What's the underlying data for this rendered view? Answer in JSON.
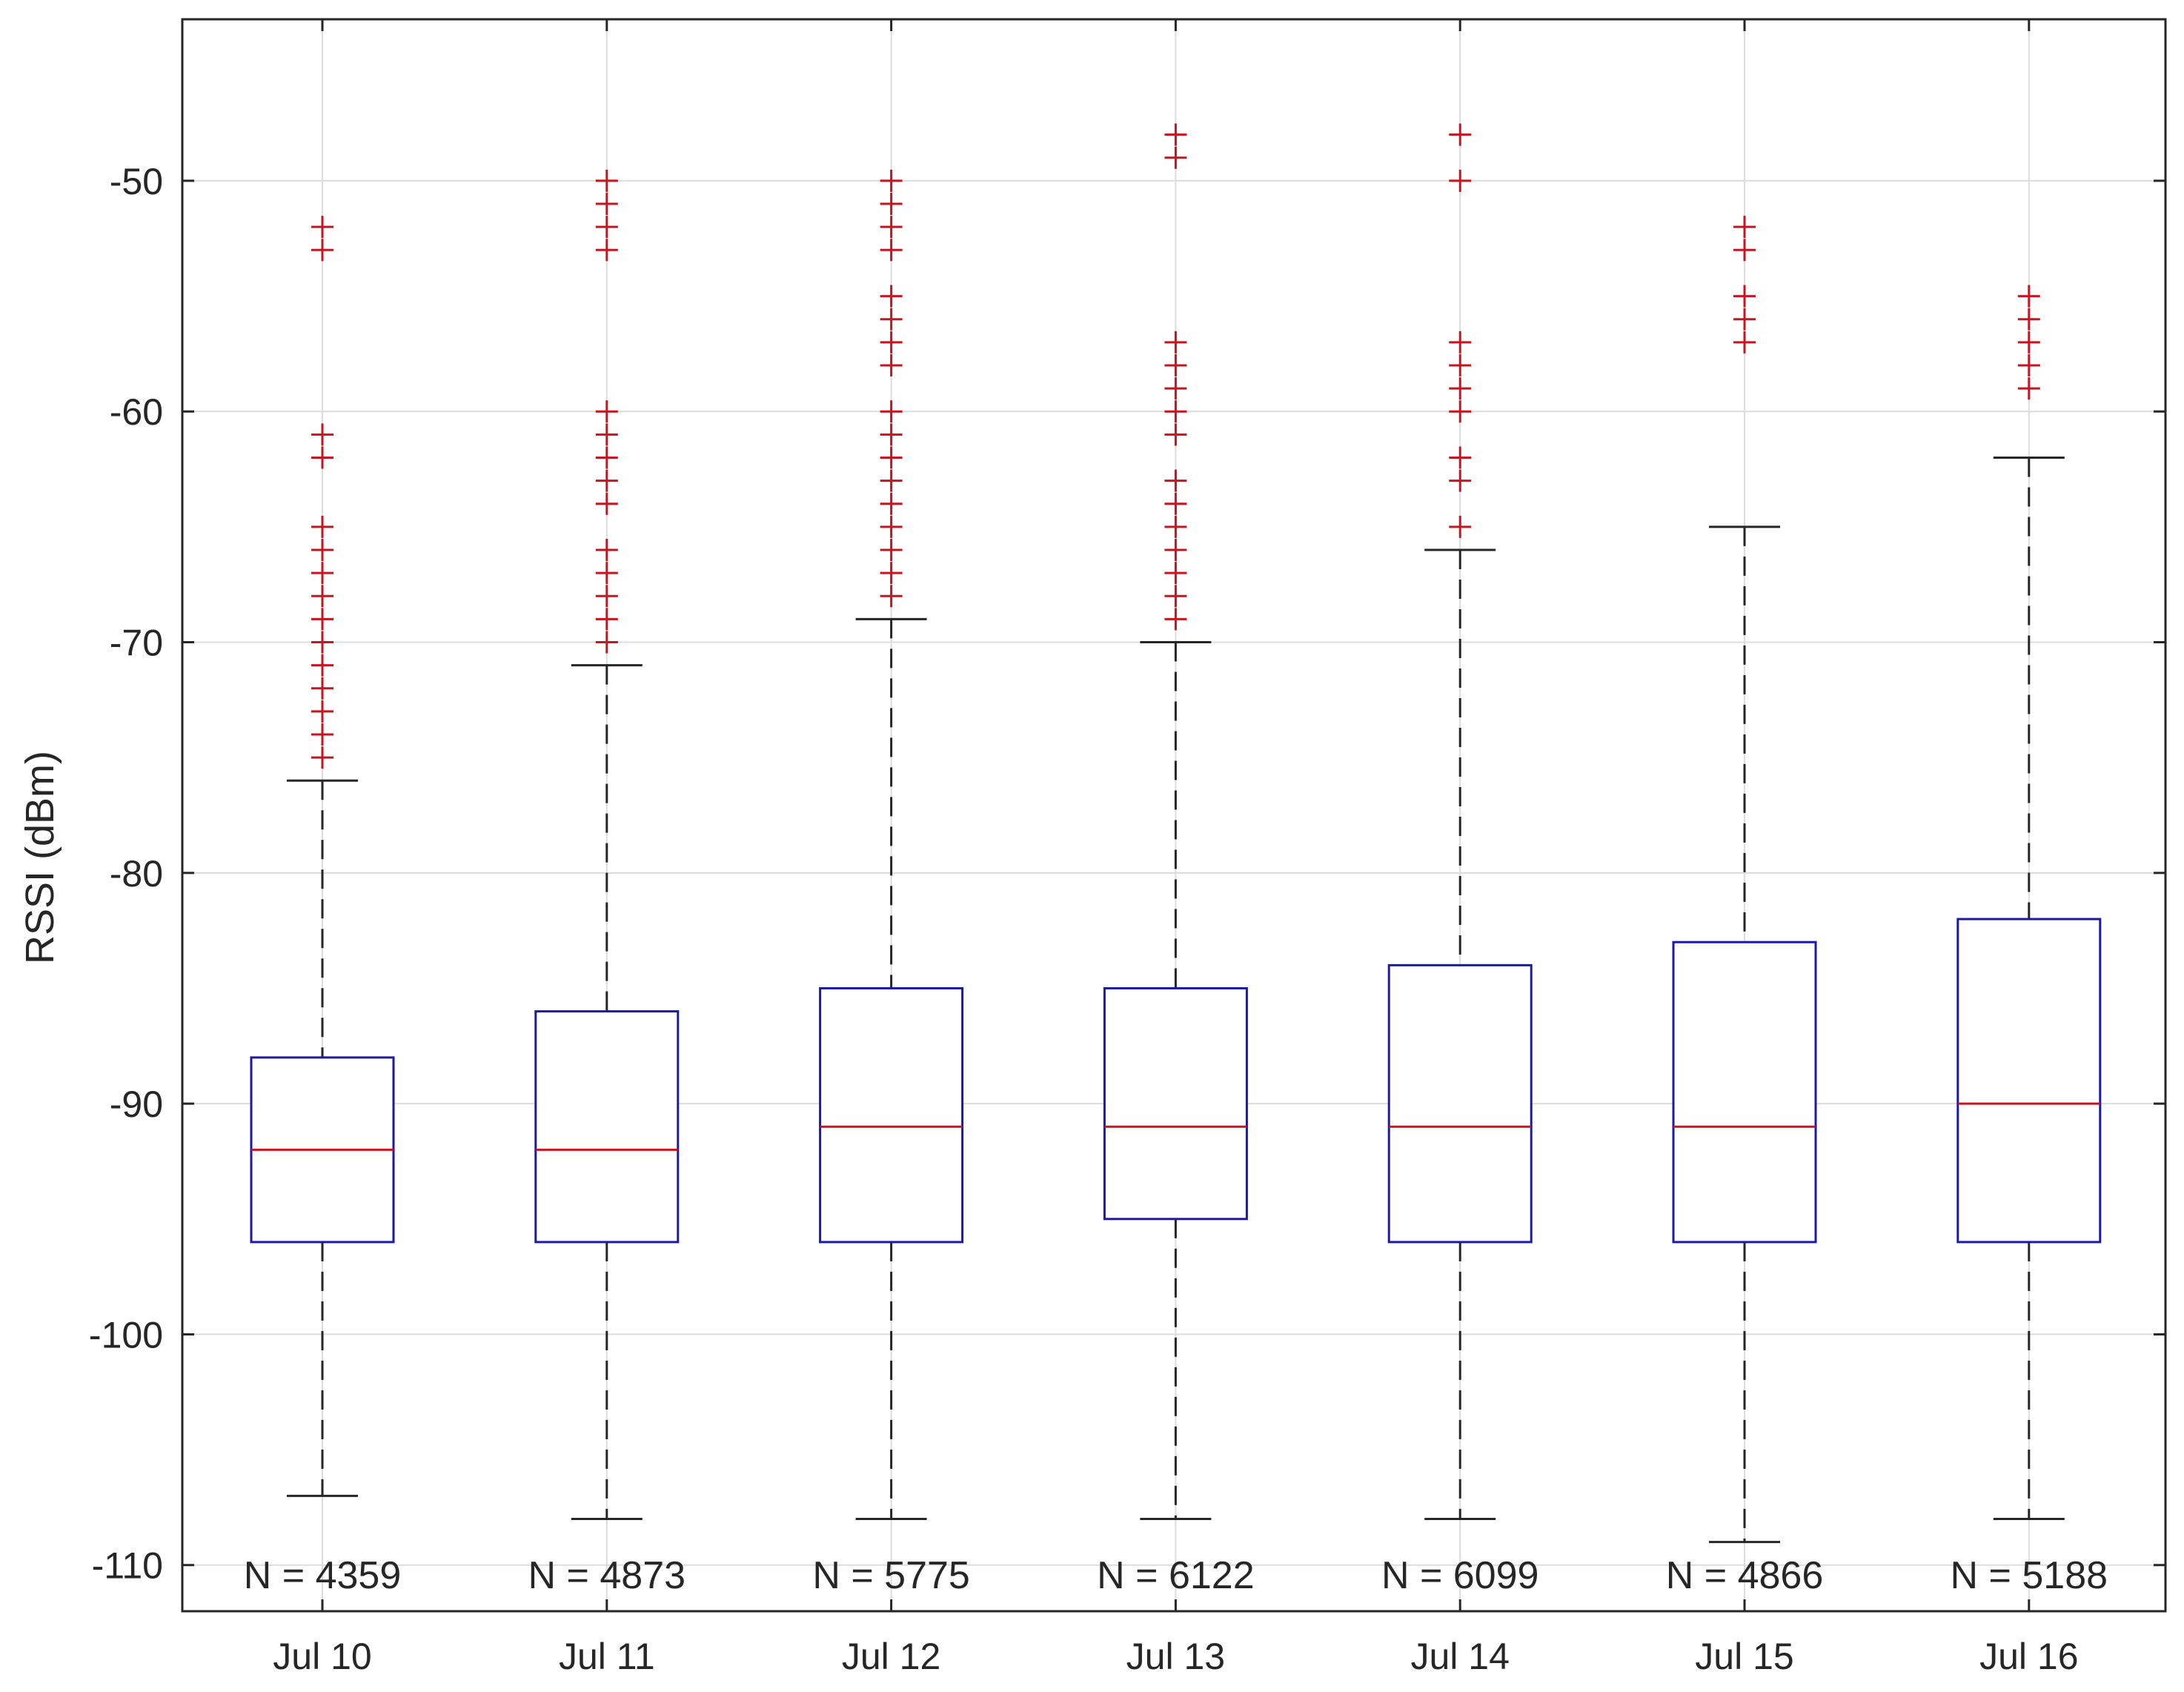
{
  "chart_data": {
    "type": "boxplot",
    "title": "",
    "xlabel": "",
    "ylabel": "RSSI (dBm)",
    "ylim": [
      -112,
      -43
    ],
    "yticks": [
      -50,
      -60,
      -70,
      -80,
      -90,
      -100,
      -110
    ],
    "ytick_labels": [
      "-50",
      "-60",
      "-70",
      "-80",
      "-90",
      "-100",
      "-110"
    ],
    "grid": true,
    "categories": [
      "Jul 10",
      "Jul 11",
      "Jul 12",
      "Jul 13",
      "Jul 14",
      "Jul 15",
      "Jul 16"
    ],
    "counts": [
      "N = 4359",
      "N = 4873",
      "N = 5775",
      "N = 6122",
      "N = 6099",
      "N = 4866",
      "N = 5188"
    ],
    "boxes": [
      {
        "median": -92,
        "q1": -96,
        "q3": -88,
        "whisker_low": -107,
        "whisker_high": -76,
        "outliers": [
          -52,
          -53,
          -61,
          -62,
          -65,
          -66,
          -67,
          -68,
          -69,
          -70,
          -71,
          -72,
          -73,
          -74,
          -75
        ]
      },
      {
        "median": -92,
        "q1": -96,
        "q3": -86,
        "whisker_low": -108,
        "whisker_high": -71,
        "outliers": [
          -50,
          -51,
          -52,
          -53,
          -60,
          -61,
          -62,
          -63,
          -64,
          -66,
          -67,
          -68,
          -69,
          -70
        ]
      },
      {
        "median": -91,
        "q1": -96,
        "q3": -85,
        "whisker_low": -108,
        "whisker_high": -69,
        "outliers": [
          -50,
          -51,
          -52,
          -53,
          -55,
          -56,
          -57,
          -58,
          -60,
          -61,
          -62,
          -63,
          -64,
          -65,
          -66,
          -67,
          -68
        ]
      },
      {
        "median": -91,
        "q1": -95,
        "q3": -85,
        "whisker_low": -108,
        "whisker_high": -70,
        "outliers": [
          -48,
          -49,
          -57,
          -58,
          -59,
          -60,
          -61,
          -63,
          -64,
          -65,
          -66,
          -67,
          -68,
          -69
        ]
      },
      {
        "median": -91,
        "q1": -96,
        "q3": -84,
        "whisker_low": -108,
        "whisker_high": -66,
        "outliers": [
          -48,
          -50,
          -57,
          -58,
          -59,
          -60,
          -62,
          -63,
          -65
        ]
      },
      {
        "median": -91,
        "q1": -96,
        "q3": -83,
        "whisker_low": -109,
        "whisker_high": -65,
        "outliers": [
          -52,
          -53,
          -55,
          -56,
          -57
        ]
      },
      {
        "median": -90,
        "q1": -96,
        "q3": -82,
        "whisker_low": -108,
        "whisker_high": -62,
        "outliers": [
          -55,
          -56,
          -57,
          -58,
          -59
        ]
      }
    ],
    "colors": {
      "box": "#1a1aa6",
      "median": "#c8141e",
      "outlier": "#c8141e",
      "whisker": "#262626",
      "grid": "#dcdcdc",
      "axis": "#262626"
    }
  }
}
